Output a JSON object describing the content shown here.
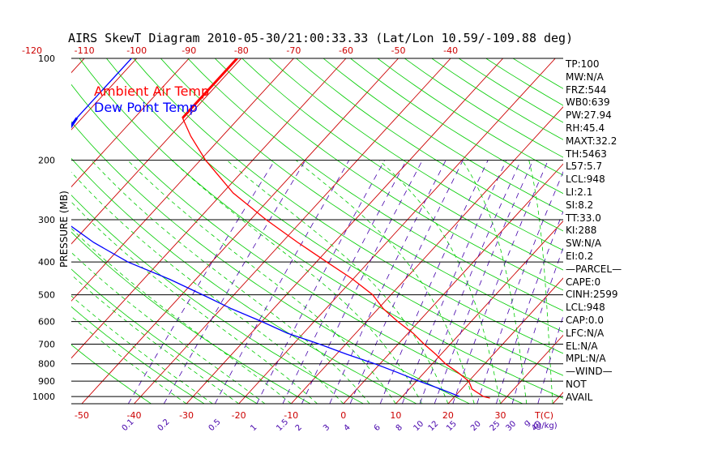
{
  "chart_data": {
    "type": "skewt",
    "title": "AIRS SkewT Diagram 2010-05-30/21:00:33.33 (Lat/Lon 10.59/-109.88 deg)",
    "ylabel": "PRESSURE (MB)",
    "x_unit_label": "T(C)",
    "mixing_unit_label": "g/kg",
    "pressure_range": [
      100,
      1050
    ],
    "temp_range_bottom": [
      -52,
      42
    ],
    "pressure_ticks": [
      100,
      200,
      300,
      400,
      500,
      600,
      700,
      800,
      900,
      1000
    ],
    "pressure_tick_labels": [
      "100",
      "200",
      "300",
      "400",
      "500",
      "600",
      "700",
      "800",
      "900",
      "1000"
    ],
    "bottom_temp_ticks": [
      -50,
      -40,
      -30,
      -20,
      -10,
      0,
      10,
      20,
      30
    ],
    "bottom_temp_tick_labels": [
      "-50",
      "-40",
      "-30",
      "-20",
      "-10",
      "0",
      "10",
      "20",
      "30"
    ],
    "top_temp_ticks": [
      -120,
      -110,
      -100,
      -90,
      -80,
      -70,
      -60,
      -50,
      -40
    ],
    "top_temp_tick_labels": [
      "-120",
      "-110",
      "-100",
      "-90",
      "-80",
      "-70",
      "-60",
      "-50",
      "-40"
    ],
    "mixing_ratio_labels": [
      {
        "value": 0.1,
        "text": "0.1"
      },
      {
        "value": 0.2,
        "text": "0.2"
      },
      {
        "value": 0.5,
        "text": "0.5"
      },
      {
        "value": 1,
        "text": "1"
      },
      {
        "value": 1.5,
        "text": "1.5"
      },
      {
        "value": 2,
        "text": "2"
      },
      {
        "value": 3,
        "text": "3"
      },
      {
        "value": 4,
        "text": "4"
      },
      {
        "value": 6,
        "text": "6"
      },
      {
        "value": 8,
        "text": "8"
      },
      {
        "value": 10,
        "text": "10"
      },
      {
        "value": 12,
        "text": "12"
      },
      {
        "value": 15,
        "text": "15"
      },
      {
        "value": 20,
        "text": "20"
      },
      {
        "value": 25,
        "text": "25"
      },
      {
        "value": 30,
        "text": "30"
      },
      {
        "value": 40,
        "text": "40"
      }
    ],
    "series": [
      {
        "name": "Ambient Air Temp",
        "color": "#ff0000",
        "points": [
          {
            "p": 100,
            "t": -80.8
          },
          {
            "p": 150,
            "t": -80.8
          },
          {
            "p": 170,
            "t": -76
          },
          {
            "p": 200,
            "t": -69
          },
          {
            "p": 250,
            "t": -58
          },
          {
            "p": 300,
            "t": -47
          },
          {
            "p": 350,
            "t": -37
          },
          {
            "p": 400,
            "t": -28
          },
          {
            "p": 450,
            "t": -20
          },
          {
            "p": 500,
            "t": -13.5
          },
          {
            "p": 550,
            "t": -9
          },
          {
            "p": 600,
            "t": -4
          },
          {
            "p": 650,
            "t": 1
          },
          {
            "p": 700,
            "t": 5
          },
          {
            "p": 750,
            "t": 9
          },
          {
            "p": 800,
            "t": 12.5
          },
          {
            "p": 850,
            "t": 16.5
          },
          {
            "p": 900,
            "t": 20
          },
          {
            "p": 950,
            "t": 22
          },
          {
            "p": 1000,
            "t": 25.5
          },
          {
            "p": 1010,
            "t": 27
          }
        ]
      },
      {
        "name": "Dew Point Temp",
        "color": "#0000ff",
        "points": [
          {
            "p": 100,
            "t": -101
          },
          {
            "p": 165,
            "t": -101
          },
          {
            "p": 200,
            "t": -99
          },
          {
            "p": 250,
            "t": -94
          },
          {
            "p": 300,
            "t": -86
          },
          {
            "p": 350,
            "t": -76
          },
          {
            "p": 400,
            "t": -66
          },
          {
            "p": 450,
            "t": -55
          },
          {
            "p": 500,
            "t": -46
          },
          {
            "p": 550,
            "t": -38
          },
          {
            "p": 600,
            "t": -30
          },
          {
            "p": 650,
            "t": -23
          },
          {
            "p": 700,
            "t": -15
          },
          {
            "p": 750,
            "t": -8
          },
          {
            "p": 800,
            "t": -1
          },
          {
            "p": 850,
            "t": 5
          },
          {
            "p": 900,
            "t": 10.5
          },
          {
            "p": 950,
            "t": 16
          },
          {
            "p": 1000,
            "t": 21
          }
        ]
      }
    ],
    "legend": {
      "placement": "top-left",
      "items": [
        {
          "label": "Ambient Air Temp",
          "color": "#ff0000"
        },
        {
          "label": "Dew Point Temp",
          "color": "#0000ff"
        }
      ]
    },
    "colors": {
      "isotherm": "#cc0000",
      "dry_adiabat": "#00cc00",
      "moist_adiabat": "#00cc00",
      "mixing_ratio": "#4400aa",
      "tick_labels": "#cc0000",
      "isobar": "#000000"
    },
    "indices": [
      "TP:100",
      "MW:N/A",
      "FRZ:544",
      "WB0:639",
      "PW:27.94",
      "RH:45.4",
      "MAXT:32.2",
      "TH:5463",
      "L57:5.7",
      "LCL:948",
      "LI:2.1",
      "SI:8.2",
      "TT:33.0",
      "KI:288",
      "SW:N/A",
      "EI:0.2",
      "—PARCEL—",
      "CAPE:0",
      "CINH:2599",
      "LCL:948",
      "CAP:0.0",
      "LFC:N/A",
      "EL:N/A",
      "MPL:N/A",
      "—WIND—",
      "NOT",
      "AVAIL"
    ]
  }
}
